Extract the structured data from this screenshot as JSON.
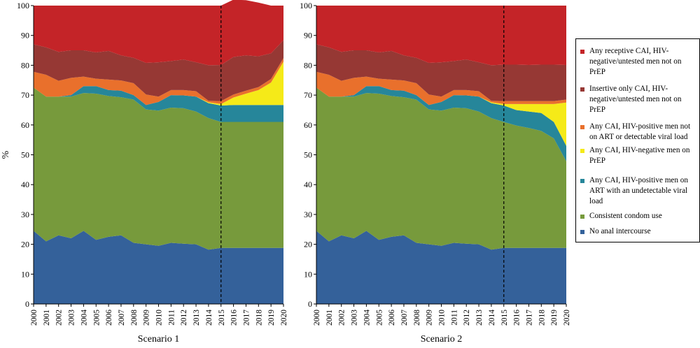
{
  "chart_data": [
    {
      "type": "area",
      "stacked": true,
      "xlabel": "Scenario 1",
      "ylabel": "%",
      "ylim": [
        0,
        100
      ],
      "yticks": [
        0,
        10,
        20,
        30,
        40,
        50,
        60,
        70,
        80,
        90,
        100
      ],
      "x": [
        2000,
        2001,
        2002,
        2003,
        2004,
        2005,
        2006,
        2007,
        2008,
        2009,
        2010,
        2011,
        2012,
        2013,
        2014,
        2015,
        2016,
        2017,
        2018,
        2019,
        2020
      ],
      "marker_x": 2015,
      "series": [
        {
          "name": "No anal intercourse",
          "color": "#34619a",
          "values": [
            24.5,
            21,
            23,
            22,
            24.5,
            21.5,
            22.5,
            23,
            20.5,
            20,
            19.5,
            20.5,
            20.2,
            20,
            18.2,
            18.8,
            18.8,
            18.8,
            18.8,
            18.8,
            18.8
          ]
        },
        {
          "name": "Consistent condom use",
          "color": "#779a3c",
          "values": [
            48,
            48.5,
            46.5,
            47.5,
            46.2,
            49,
            47.2,
            46.3,
            48,
            45.2,
            45.3,
            45.3,
            45.4,
            44.5,
            44.1,
            42.2,
            42.2,
            42.2,
            42.2,
            42.2,
            42.2
          ]
        },
        {
          "name": "Any CAI, HIV-positive men on ART with an undetectable viral load",
          "color": "#26869a",
          "values": [
            0,
            0,
            0,
            0.5,
            2.3,
            2.5,
            2,
            2.2,
            1.5,
            1.5,
            2.9,
            4.2,
            4.3,
            5,
            5,
            5.5,
            5.7,
            5.7,
            5.7,
            5.7,
            5.7
          ]
        },
        {
          "name": "Any CAI, HIV-negative men on PrEP",
          "color": "#f5ea18",
          "values": [
            0,
            0,
            0,
            0,
            0,
            0,
            0,
            0,
            0,
            0,
            0,
            0,
            0,
            0,
            0.3,
            0.5,
            2.5,
            3.8,
            5,
            7.5,
            14.5
          ]
        },
        {
          "name": "Any CAI, HIV-positive men not on ART or detectable viral load",
          "color": "#e9702c",
          "values": [
            5.3,
            7.3,
            5.3,
            5.8,
            3.2,
            2.5,
            3.5,
            3.4,
            4,
            3.5,
            1.8,
            1.7,
            1.8,
            1.8,
            0.5,
            1,
            1,
            1,
            1,
            1.2,
            1.2
          ]
        },
        {
          "name": "Insertive only CAI, HIV-negative/untested men not on PrEP",
          "color": "#963834",
          "values": [
            9.2,
            9.2,
            9.7,
            9.2,
            8.8,
            8.8,
            9.6,
            8.4,
            8.5,
            10.6,
            11.5,
            9.7,
            10.2,
            9.7,
            11.9,
            12.1,
            12.6,
            11.8,
            10.3,
            8.6,
            6
          ]
        },
        {
          "name": "Any receptive CAI, HIV-negative/untested men not on PrEP",
          "color": "#c42428",
          "values": [
            13,
            14,
            15.5,
            15,
            15,
            15.7,
            15.2,
            16.7,
            17.5,
            19.2,
            19,
            18.6,
            18.1,
            19,
            20,
            19.9,
            19.2,
            18.5,
            18,
            16,
            11.6
          ]
        }
      ]
    },
    {
      "type": "area",
      "stacked": true,
      "xlabel": "Scenario 2",
      "ylabel": "",
      "ylim": [
        0,
        100
      ],
      "yticks": [
        0,
        10,
        20,
        30,
        40,
        50,
        60,
        70,
        80,
        90,
        100
      ],
      "x": [
        2000,
        2001,
        2002,
        2003,
        2004,
        2005,
        2006,
        2007,
        2008,
        2009,
        2010,
        2011,
        2012,
        2013,
        2014,
        2015,
        2016,
        2017,
        2018,
        2019,
        2020
      ],
      "marker_x": 2015,
      "series": [
        {
          "name": "No anal intercourse",
          "color": "#34619a",
          "values": [
            24.5,
            21,
            23,
            22,
            24.5,
            21.5,
            22.5,
            23,
            20.5,
            20,
            19.5,
            20.5,
            20.2,
            20,
            18.2,
            18.8,
            18.8,
            18.8,
            18.8,
            18.8,
            18.8
          ]
        },
        {
          "name": "Consistent condom use",
          "color": "#779a3c",
          "values": [
            48,
            48.5,
            46.5,
            47.5,
            46.2,
            49,
            47.2,
            46.3,
            48,
            45.2,
            45.3,
            45.3,
            45.4,
            44.5,
            44.1,
            42.2,
            41,
            40.2,
            39.2,
            36.7,
            29
          ]
        },
        {
          "name": "Any CAI, HIV-positive men on ART with an undetectable viral load",
          "color": "#26869a",
          "values": [
            0,
            0,
            0,
            0.5,
            2.3,
            2.5,
            2,
            2.2,
            1.5,
            1.5,
            2.9,
            4.2,
            4.3,
            5,
            5,
            5.5,
            5.2,
            5.5,
            6,
            5.5,
            5.2
          ]
        },
        {
          "name": "Any CAI, HIV-negative men on PrEP",
          "color": "#f5ea18",
          "values": [
            0,
            0,
            0,
            0,
            0,
            0,
            0,
            0,
            0,
            0,
            0,
            0,
            0,
            0,
            0.3,
            0.5,
            2,
            2.5,
            3,
            6,
            14.5
          ]
        },
        {
          "name": "Any CAI, HIV-positive men not on ART or detectable viral load",
          "color": "#e9702c",
          "values": [
            5.3,
            7.3,
            5.3,
            5.8,
            3.2,
            2.5,
            3.5,
            3.4,
            4,
            3.5,
            1.8,
            1.7,
            1.8,
            1.8,
            0.5,
            1,
            1,
            1,
            1,
            1,
            1
          ]
        },
        {
          "name": "Insertive only CAI, HIV-negative/untested men not on PrEP",
          "color": "#963834",
          "values": [
            9.2,
            9.2,
            9.7,
            9.2,
            8.8,
            8.8,
            9.6,
            8.4,
            8.5,
            10.6,
            11.5,
            9.7,
            10.2,
            9.7,
            11.9,
            12.2,
            12.2,
            12.1,
            12.2,
            12.2,
            11.6
          ]
        },
        {
          "name": "Any receptive CAI, HIV-negative/untested men not on PrEP",
          "color": "#c42428",
          "values": [
            13,
            14,
            15.5,
            15,
            15,
            15.7,
            15.2,
            16.7,
            17.5,
            19.2,
            19,
            18.6,
            18.1,
            19,
            20,
            19.8,
            19.8,
            19.9,
            19.8,
            19.8,
            19.9
          ]
        }
      ]
    }
  ],
  "legend": {
    "items": [
      {
        "label": "Any receptive CAI, HIV-negative/untested men not on PrEP",
        "color": "#c42428"
      },
      {
        "label": "Insertive only CAI, HIV-negative/untested men not on PrEP",
        "color": "#963834"
      },
      {
        "label": "Any CAI, HIV-positive men not on ART or detectable viral load",
        "color": "#e9702c"
      },
      {
        "label": "Any CAI, HIV-negative men on PrEP",
        "color": "#f5ea18"
      },
      {
        "label": "Any CAI, HIV-positive men on ART with an undetectable viral load",
        "color": "#26869a"
      },
      {
        "label": "Consistent condom use",
        "color": "#779a3c"
      },
      {
        "label": "No anal intercourse",
        "color": "#34619a"
      }
    ]
  }
}
